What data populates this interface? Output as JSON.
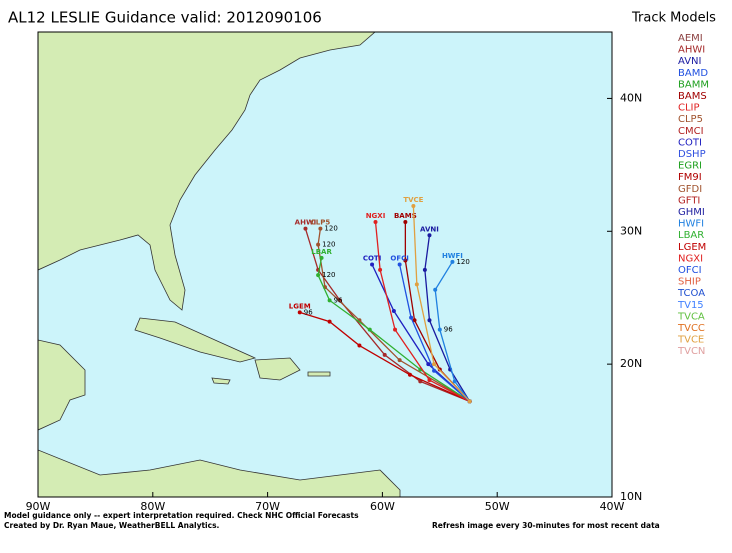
{
  "chart_data": {
    "type": "track-map",
    "title": "AL12 LESLIE Guidance valid: 2012090106",
    "legend_title": "Track Models",
    "footer_left": [
      "Model guidance only -- expert interpretation required.  Check NHC Official Forecasts",
      "Created by Dr. Ryan Maue, WeatherBELL Analytics."
    ],
    "footer_right": "Refresh image every 30-minutes for most recent data",
    "xlim": [
      -90,
      -40
    ],
    "ylim": [
      10,
      45
    ],
    "xticks": [
      {
        "value": -90,
        "label": "90W"
      },
      {
        "value": -80,
        "label": "80W"
      },
      {
        "value": -70,
        "label": "70W"
      },
      {
        "value": -60,
        "label": "60W"
      },
      {
        "value": -50,
        "label": "50W"
      },
      {
        "value": -40,
        "label": "40W"
      }
    ],
    "yticks": [
      {
        "value": 10,
        "label": "10N"
      },
      {
        "value": 20,
        "label": "20N"
      },
      {
        "value": 30,
        "label": "30N"
      },
      {
        "value": 40,
        "label": "40N"
      }
    ],
    "series": [
      {
        "name": "AEMI",
        "color": "#8b4040"
      },
      {
        "name": "AHWI",
        "color": "#a52a2a",
        "lon": [
          -52.4,
          -56.7,
          -59.8,
          -63.7,
          -65.6,
          -66.7
        ],
        "lat": [
          17.2,
          18.7,
          20.7,
          24.8,
          27.1,
          30.2
        ]
      },
      {
        "name": "AVNI",
        "color": "#1a1aa0",
        "lon": [
          -52.4,
          -54.1,
          -55.9,
          -56.3,
          -55.9
        ],
        "lat": [
          17.2,
          19.6,
          23.3,
          27.1,
          29.7
        ]
      },
      {
        "name": "BAMD",
        "color": "#2050e0"
      },
      {
        "name": "BAMM",
        "color": "#20a020"
      },
      {
        "name": "BAMS",
        "color": "#a00000",
        "lon": [
          -52.4,
          -55.0,
          -57.2,
          -58.0,
          -58.0
        ],
        "lat": [
          17.2,
          19.6,
          23.3,
          27.8,
          30.7
        ]
      },
      {
        "name": "CLIP",
        "color": "#e02020"
      },
      {
        "name": "CLP5",
        "color": "#a0522d",
        "lon": [
          -52.4,
          -58.5,
          -62.0,
          -65.0,
          -65.6,
          -65.4
        ],
        "lat": [
          17.2,
          20.3,
          23.3,
          25.8,
          29.0,
          30.2
        ],
        "labels": [
          null,
          null,
          null,
          null,
          "120",
          "120"
        ]
      },
      {
        "name": "CMCI",
        "color": "#b22222"
      },
      {
        "name": "COTI",
        "color": "#2020c0",
        "lon": [
          -52.4,
          -56.0,
          -59.0,
          -60.9
        ],
        "lat": [
          17.2,
          20.0,
          24.0,
          27.5
        ]
      },
      {
        "name": "DSHP",
        "color": "#3050e0"
      },
      {
        "name": "EGRI",
        "color": "#20a020"
      },
      {
        "name": "FM9I",
        "color": "#b00000"
      },
      {
        "name": "GFDI",
        "color": "#a0522d"
      },
      {
        "name": "GFTI",
        "color": "#b22222"
      },
      {
        "name": "GHMI",
        "color": "#2020a0"
      },
      {
        "name": "HWFI",
        "color": "#2080e0",
        "lon": [
          -52.4,
          -53.7,
          -55.0,
          -55.4,
          -53.9
        ],
        "lat": [
          17.2,
          18.7,
          22.6,
          25.6,
          27.7
        ],
        "labels": [
          null,
          null,
          "96",
          null,
          "120"
        ]
      },
      {
        "name": "LBAR",
        "color": "#30b030",
        "lon": [
          -52.4,
          -56.7,
          -61.1,
          -64.6,
          -65.6,
          -65.3
        ],
        "lat": [
          17.2,
          19.6,
          22.6,
          24.8,
          26.7,
          28.0
        ],
        "labels": [
          null,
          null,
          null,
          "96",
          "120",
          null
        ]
      },
      {
        "name": "LGEM",
        "color": "#c00000",
        "lon": [
          -52.4,
          -57.6,
          -62.0,
          -64.6,
          -67.2
        ],
        "lat": [
          17.2,
          19.2,
          21.4,
          23.2,
          23.9
        ],
        "labels": [
          null,
          null,
          null,
          null,
          "96"
        ]
      },
      {
        "name": "NGXI",
        "color": "#e02020",
        "lon": [
          -52.4,
          -55.9,
          -58.9,
          -60.2,
          -60.6
        ],
        "lat": [
          17.2,
          18.8,
          22.6,
          27.1,
          30.7
        ]
      },
      {
        "name": "OFCI",
        "color": "#2050e0",
        "lon": [
          -52.4,
          -55.5,
          -57.5,
          -58.5
        ],
        "lat": [
          17.2,
          19.5,
          23.5,
          27.5
        ]
      },
      {
        "name": "SHIP",
        "color": "#e06040"
      },
      {
        "name": "TCOA",
        "color": "#2050d0"
      },
      {
        "name": "TV15",
        "color": "#4080ff"
      },
      {
        "name": "TVCA",
        "color": "#60c040"
      },
      {
        "name": "TVCC",
        "color": "#e07020"
      },
      {
        "name": "TVCE",
        "color": "#e0a040",
        "lon": [
          -52.4,
          -55.5,
          -57.0,
          -57.3
        ],
        "lat": [
          17.2,
          20.0,
          26.0,
          31.9
        ]
      },
      {
        "name": "TVCN",
        "color": "#e0a0a0"
      }
    ]
  }
}
